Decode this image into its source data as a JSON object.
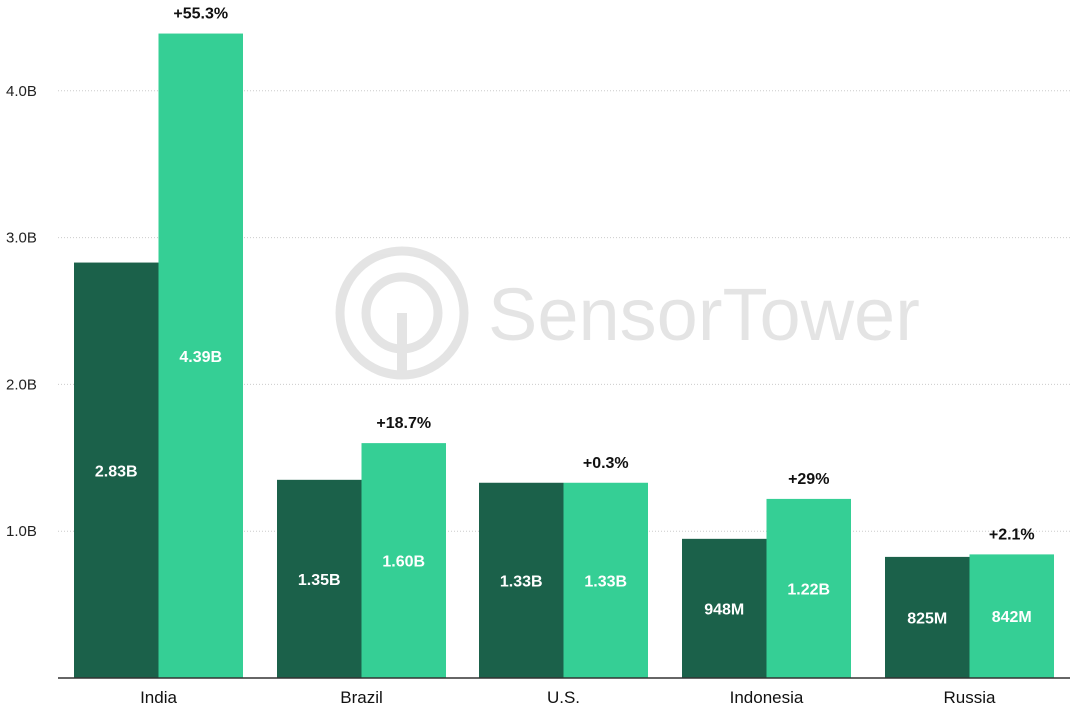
{
  "colors": {
    "series_a": "#1b614a",
    "series_b": "#35cf95",
    "grid": "#cccccc",
    "axis": "#333333",
    "watermark": "#e6e6e6"
  },
  "watermark": {
    "text": "SensorTower",
    "logo": "sensor-tower-logo-icon"
  },
  "chart_data": {
    "type": "bar",
    "categories": [
      "India",
      "Brazil",
      "U.S.",
      "Indonesia",
      "Russia"
    ],
    "series": [
      {
        "values": [
          2.83,
          1.35,
          1.33,
          0.948,
          0.825
        ],
        "labels": [
          "2.83B",
          "1.35B",
          "1.33B",
          "948M",
          "825M"
        ]
      },
      {
        "values": [
          4.39,
          1.6,
          1.33,
          1.22,
          0.842
        ],
        "labels": [
          "4.39B",
          "1.60B",
          "1.33B",
          "1.22B",
          "842M"
        ]
      }
    ],
    "growth_labels": [
      "+55.3%",
      "+18.7%",
      "+0.3%",
      "+29%",
      "+2.1%"
    ],
    "yticks": [
      1.0,
      2.0,
      3.0,
      4.0
    ],
    "ytick_labels": [
      "1.0B",
      "2.0B",
      "3.0B",
      "4.0B"
    ],
    "ylim": [
      0,
      4.6
    ],
    "unit": "B",
    "grid": true,
    "title": "",
    "xlabel": "",
    "ylabel": ""
  }
}
